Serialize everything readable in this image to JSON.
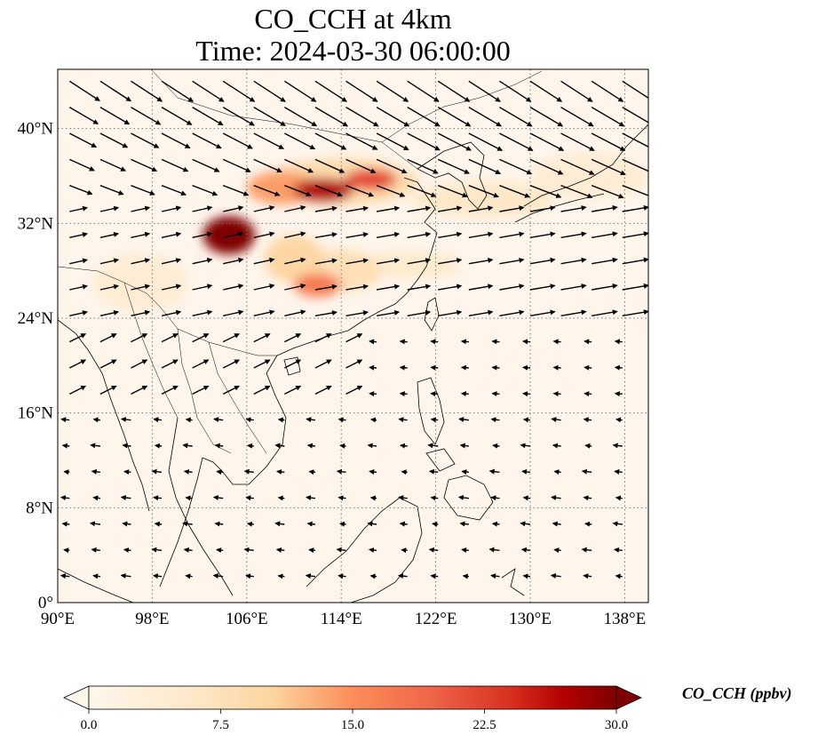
{
  "title": {
    "line1": "CO_CCH at 4km",
    "line2": "Time: 2024-03-30 06:00:00"
  },
  "map": {
    "lon_range": [
      90,
      140
    ],
    "lat_range": [
      0,
      45
    ],
    "xticks": [
      {
        "value": 90,
        "label": "90°E"
      },
      {
        "value": 98,
        "label": "98°E"
      },
      {
        "value": 106,
        "label": "106°E"
      },
      {
        "value": 114,
        "label": "114°E"
      },
      {
        "value": 122,
        "label": "122°E"
      },
      {
        "value": 130,
        "label": "130°E"
      },
      {
        "value": 138,
        "label": "138°E"
      }
    ],
    "yticks": [
      {
        "value": 0,
        "label": "0°"
      },
      {
        "value": 8,
        "label": "8°N"
      },
      {
        "value": 16,
        "label": "16°N"
      },
      {
        "value": 24,
        "label": "24°N"
      },
      {
        "value": 32,
        "label": "32°N"
      },
      {
        "value": 40,
        "label": "40°N"
      }
    ],
    "gridlines": "dotted",
    "colormap": "OrRd",
    "colors": {
      "background": "#fff5eb",
      "high": "#7f0000",
      "coast": "#000000"
    },
    "plumes": [
      {
        "lon": 104.5,
        "lat": 31.0,
        "value": 30,
        "rx": 2.2,
        "ry": 1.6
      },
      {
        "lon": 112.5,
        "lat": 34.8,
        "value": 27,
        "rx": 2.5,
        "ry": 1.0
      },
      {
        "lon": 116.5,
        "lat": 35.7,
        "value": 22,
        "rx": 2.2,
        "ry": 0.9
      },
      {
        "lon": 109.0,
        "lat": 35.0,
        "value": 14,
        "rx": 3.0,
        "ry": 1.4
      },
      {
        "lon": 114.0,
        "lat": 35.5,
        "value": 9,
        "rx": 6.5,
        "ry": 2.0
      },
      {
        "lon": 112.0,
        "lat": 26.8,
        "value": 17,
        "rx": 2.0,
        "ry": 1.0
      },
      {
        "lon": 113.5,
        "lat": 28.0,
        "value": 8,
        "rx": 4.0,
        "ry": 1.8
      },
      {
        "lon": 110.0,
        "lat": 29.0,
        "value": 10,
        "rx": 2.5,
        "ry": 2.0
      },
      {
        "lon": 126.0,
        "lat": 34.0,
        "value": 6,
        "rx": 6.0,
        "ry": 1.5
      },
      {
        "lon": 120.0,
        "lat": 28.5,
        "value": 5,
        "rx": 4.0,
        "ry": 1.2
      },
      {
        "lon": 97.0,
        "lat": 27.0,
        "value": 4,
        "rx": 4.0,
        "ry": 2.5
      },
      {
        "lon": 135.0,
        "lat": 36.0,
        "value": 4,
        "rx": 5.0,
        "ry": 2.0
      }
    ]
  },
  "colorbar": {
    "label": "CO_CCH (ppbv)",
    "min": 0,
    "max": 30,
    "extend": "both",
    "ticks": [
      "0.0",
      "7.5",
      "15.0",
      "22.5",
      "30.0"
    ]
  }
}
